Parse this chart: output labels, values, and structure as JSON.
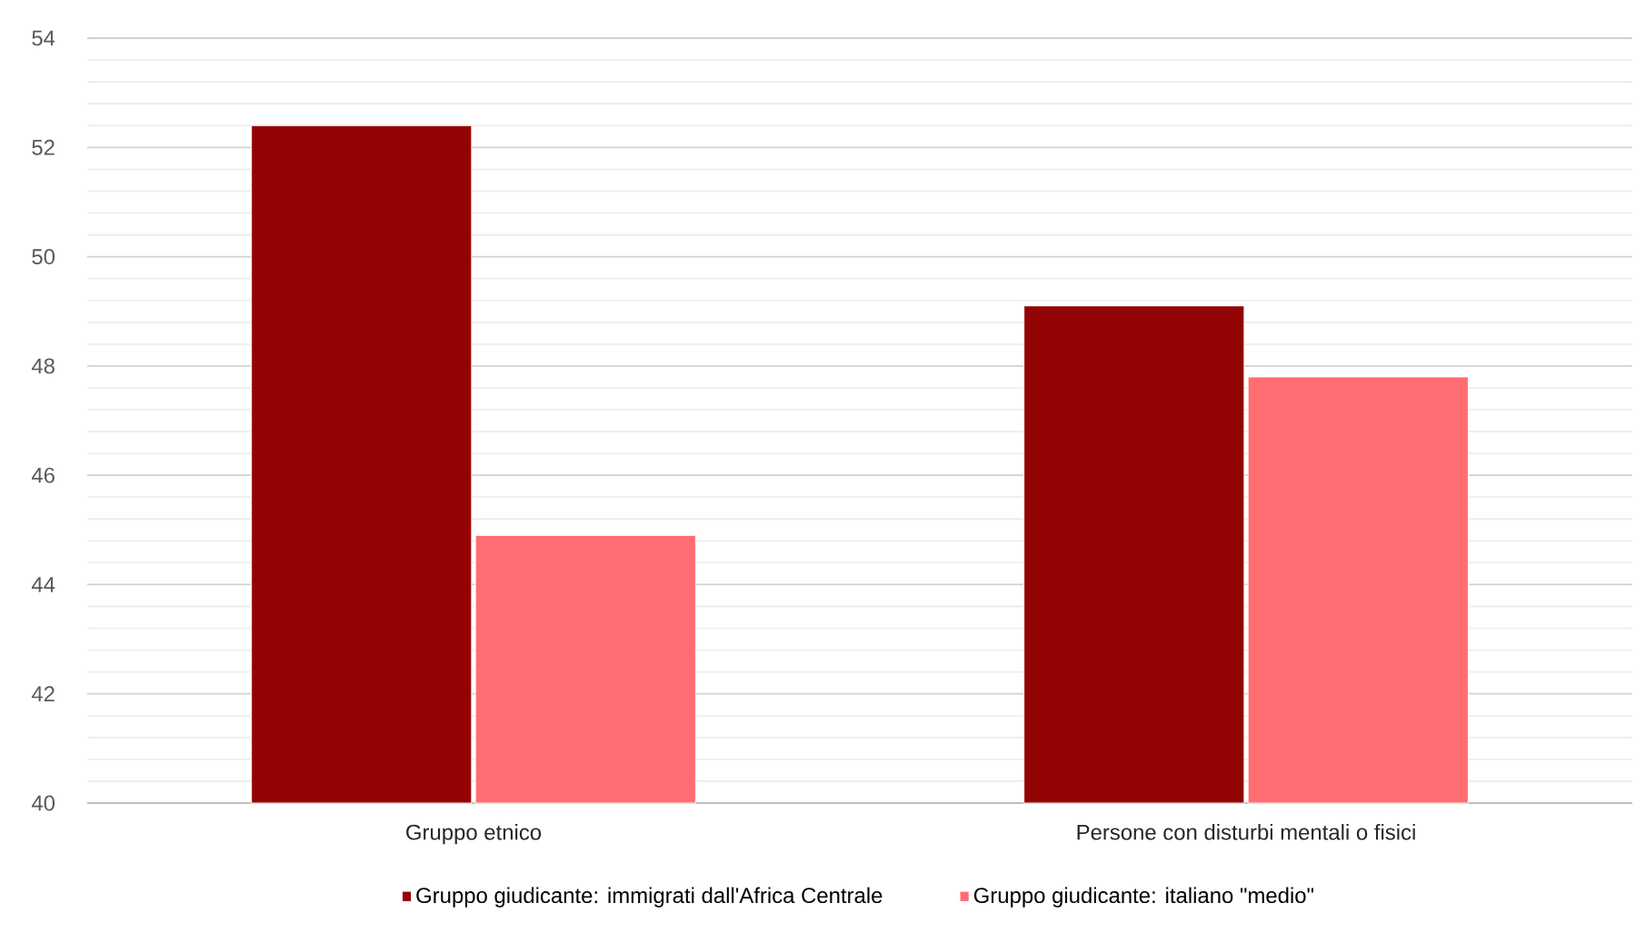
{
  "chart_data": {
    "type": "bar",
    "categories": [
      "Gruppo etnico",
      "Persone con disturbi mentali o fisici"
    ],
    "series": [
      {
        "name": "Gruppo giudicante: immigrati dall'Africa Centrale",
        "color": "#940303",
        "values": [
          52.4,
          49.1
        ]
      },
      {
        "name": "Gruppo giudicante: italiano \"medio\"",
        "color": "#ff6d72",
        "values": [
          44.9,
          47.8
        ]
      }
    ],
    "ylim": [
      40,
      54
    ],
    "yticks": [
      40,
      42,
      44,
      46,
      48,
      50,
      52,
      54
    ],
    "grid": "y",
    "legend": "bottom"
  }
}
